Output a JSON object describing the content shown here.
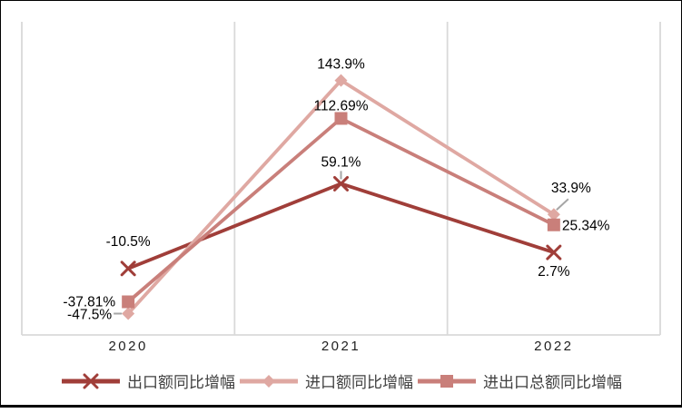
{
  "chart_data": {
    "type": "line",
    "title": "",
    "xlabel": "",
    "ylabel": "",
    "categories": [
      "2020",
      "2021",
      "2022"
    ],
    "series": [
      {
        "name": "出口额同比增幅",
        "marker": "x",
        "color": "#A03E39",
        "values": [
          -10.5,
          59.1,
          2.7
        ],
        "point_labels": [
          {
            "text": "-10.5%",
            "anchor": "middle",
            "dx": 0,
            "dy": -25
          },
          {
            "text": "59.1%",
            "anchor": "middle",
            "dx": 0,
            "dy": -19,
            "leader": [
              0,
              -14,
              0,
              -5
            ]
          },
          {
            "text": "2.7%",
            "anchor": "middle",
            "dx": 0,
            "dy": 26
          }
        ]
      },
      {
        "name": "进口额同比增幅",
        "marker": "diamond",
        "color": "#DFA8A2",
        "values": [
          -47.5,
          143.9,
          33.9
        ],
        "point_labels": [
          {
            "text": "-47.5%",
            "anchor": "end",
            "dx": -18,
            "dy": 6,
            "leader": [
              -16,
              0,
              -7,
              0
            ]
          },
          {
            "text": "143.9%",
            "anchor": "middle",
            "dx": 0,
            "dy": -13
          },
          {
            "text": "33.9%",
            "anchor": "middle",
            "dx": 19,
            "dy": -24,
            "leader": [
              3,
              -5,
              16,
              -17
            ]
          }
        ]
      },
      {
        "name": "进出口总额同比增幅",
        "marker": "square",
        "color": "#C97F7A",
        "values": [
          -37.81,
          112.69,
          25.34
        ],
        "point_labels": [
          {
            "text": "-37.81%",
            "anchor": "end",
            "dx": -14,
            "dy": 5
          },
          {
            "text": "112.69%",
            "anchor": "middle",
            "dx": 0,
            "dy": -9
          },
          {
            "text": "25.34%",
            "anchor": "start",
            "dx": 9,
            "dy": 6
          }
        ]
      }
    ],
    "ylim": [
      -65,
      192
    ],
    "grid": "vertical-category-separators",
    "legend_position": "bottom",
    "style": {
      "gridline_color": "#D9D9D9",
      "leader_color": "#A6A6A6",
      "label_color": "#000000",
      "frame_border_color": "#000000",
      "line_width": 3.8,
      "label_font_size": 15.5
    }
  }
}
